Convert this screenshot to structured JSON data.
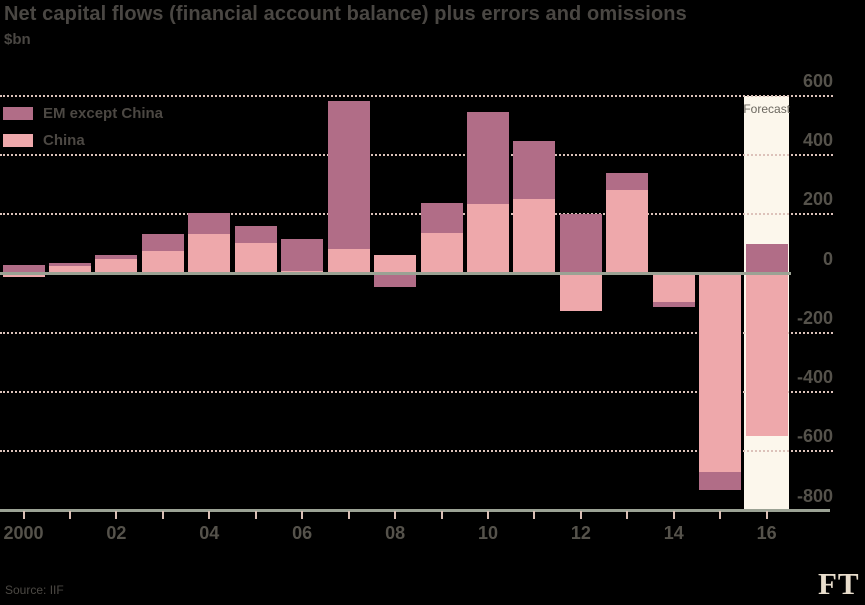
{
  "title": "Net capital flows (financial account balance) plus errors and omissions",
  "subtitle": "$bn",
  "forecast_label": "Forecast",
  "source": "Source: IIF",
  "logo": "FT",
  "legend": [
    {
      "label": "EM except China",
      "color": "#b16d87"
    },
    {
      "label": "China",
      "color": "#eea8ab"
    }
  ],
  "colors": {
    "background": "#000000",
    "em": "#b16d87",
    "china": "#eea8ab",
    "forecast_band": "#fcf7ec",
    "axis_line": "#9ba294",
    "grid_dots": "#dcc2ba",
    "tick": "#d9beb4",
    "title_text": "#4a4743",
    "label_text": "#55524b",
    "logo_text": "#e8ddcc"
  },
  "chart_data": {
    "type": "bar",
    "stacked": true,
    "title": "Net capital flows (financial account balance) plus errors and omissions",
    "ylabel": "$bn",
    "x": [
      2000,
      2001,
      2002,
      2003,
      2004,
      2005,
      2006,
      2007,
      2008,
      2009,
      2010,
      2011,
      2012,
      2013,
      2014,
      2015,
      2016
    ],
    "x_tick_labels": [
      "2000",
      "02",
      "04",
      "06",
      "08",
      "10",
      "12",
      "14",
      "16"
    ],
    "series": [
      {
        "name": "China",
        "color": "#eea8ab",
        "values": [
          -12,
          25,
          50,
          77,
          135,
          102,
          10,
          83,
          61,
          136,
          236,
          253,
          -125,
          283,
          -97,
          -671,
          -550
        ]
      },
      {
        "name": "EM except China",
        "color": "#b16d87",
        "values": [
          30,
          12,
          13,
          57,
          70,
          57,
          108,
          500,
          -46,
          103,
          310,
          194,
          202,
          56,
          -15,
          -61,
          100
        ]
      }
    ],
    "ylim": [
      -800,
      600
    ],
    "ytick_step": 200,
    "y_tick_labels": [
      "600",
      "400",
      "200",
      "0",
      "-200",
      "-400",
      "-600",
      "-800"
    ],
    "grid": "dotted-horizontal",
    "legend_position": "top-left-inside",
    "forecast_year": 2016,
    "zero_line": true
  }
}
